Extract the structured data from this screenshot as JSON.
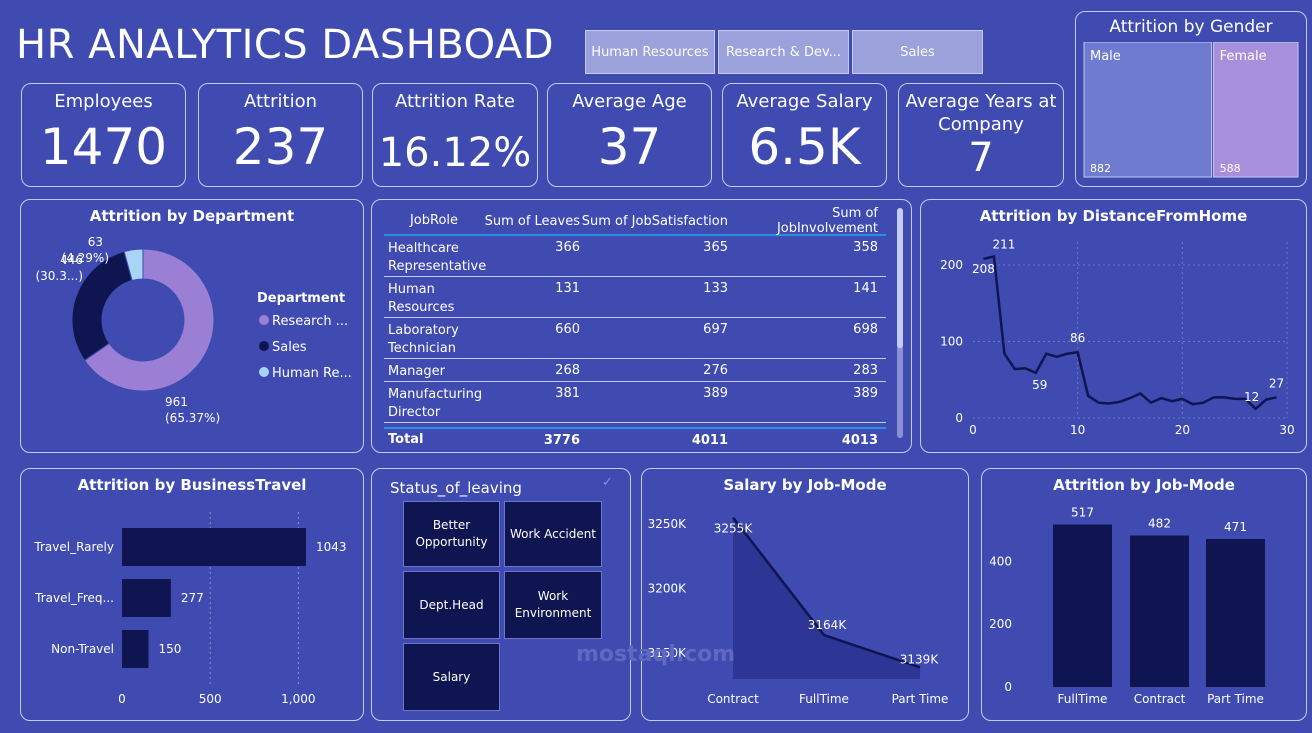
{
  "title": "HR ANALYTICS DASHBOAD",
  "slicer": [
    "Human Resources",
    "Research & Dev...",
    "Sales"
  ],
  "kpis": {
    "employees": {
      "label": "Employees",
      "value": "1470"
    },
    "attrition": {
      "label": "Attrition",
      "value": "237"
    },
    "attrition_rate": {
      "label": "Attrition Rate",
      "value": "16.12%"
    },
    "average_age": {
      "label": "Average Age",
      "value": "37"
    },
    "average_salary": {
      "label": "Average Salary",
      "value": "6.5K"
    },
    "average_years": {
      "label": "Average Years at Company",
      "value": "7"
    }
  },
  "table": {
    "headers": [
      "JobRole",
      "Sum of Leaves",
      "Sum of JobSatisfaction",
      "Sum of JobInvolvement"
    ],
    "rows": [
      [
        "Healthcare Representative",
        "366",
        "365",
        "358"
      ],
      [
        "Human Resources",
        "131",
        "133",
        "141"
      ],
      [
        "Laboratory Technician",
        "660",
        "697",
        "698"
      ],
      [
        "Manager",
        "268",
        "276",
        "283"
      ],
      [
        "Manufacturing Director",
        "381",
        "389",
        "389"
      ]
    ],
    "total": [
      "Total",
      "3776",
      "4011",
      "4013"
    ]
  },
  "status_of_leaving": {
    "title": "Status_of_leaving",
    "tiles": [
      "Better Opportunity",
      "Work Accident",
      "Dept.Head",
      "Work Environment",
      "Salary"
    ]
  },
  "watermark": "mostaql.com",
  "colors": {
    "bg": "#3f4bb1",
    "navy": "#0f1550",
    "lavender": "#9b7fd4",
    "lightblue": "#a8d4f5"
  },
  "chart_data": [
    {
      "id": "gender",
      "type": "treemap",
      "title": "Attrition by Gender",
      "categories": [
        "Male",
        "Female"
      ],
      "values": [
        882,
        588
      ]
    },
    {
      "id": "department",
      "type": "pie",
      "title": "Attrition by Department",
      "legend_title": "Department",
      "categories": [
        "Research ...",
        "Sales",
        "Human Re..."
      ],
      "values": [
        961,
        446,
        63
      ],
      "labels": [
        "961",
        "446",
        "63"
      ],
      "percent_labels": [
        "(65.37%)",
        "(30.3...)",
        "(4.29%)"
      ],
      "colors": [
        "#9b7fd4",
        "#0f1550",
        "#a8d4f5"
      ],
      "legend": "right"
    },
    {
      "id": "distance",
      "type": "line",
      "title": "Attrition by DistanceFromHome",
      "x": [
        1,
        2,
        3,
        4,
        5,
        6,
        7,
        8,
        9,
        10,
        11,
        12,
        13,
        14,
        15,
        16,
        17,
        18,
        19,
        20,
        21,
        22,
        23,
        24,
        25,
        26,
        27,
        28,
        29
      ],
      "y": [
        208,
        211,
        84,
        64,
        65,
        59,
        84,
        80,
        84,
        86,
        29,
        20,
        19,
        21,
        26,
        32,
        20,
        26,
        22,
        25,
        18,
        20,
        27,
        27,
        25,
        25,
        12,
        24,
        27
      ],
      "point_labels": {
        "1": "208",
        "2": "211",
        "6": "59",
        "10": "86",
        "27": "12",
        "29": "27"
      },
      "xticks": [
        "0",
        "10",
        "20",
        "30"
      ],
      "yticks": [
        "0",
        "100",
        "200"
      ],
      "xlim": [
        0,
        30
      ],
      "ylim": [
        0,
        230
      ],
      "grid": true
    },
    {
      "id": "business_travel",
      "type": "bar",
      "orientation": "horizontal",
      "title": "Attrition by BusinessTravel",
      "categories": [
        "Travel_Rarely",
        "Travel_Freq...",
        "Non-Travel"
      ],
      "values": [
        1043,
        277,
        150
      ],
      "xticks": [
        "0",
        "500",
        "1,000"
      ],
      "xlim": [
        0,
        1100
      ],
      "grid": true
    },
    {
      "id": "salary_jobmode",
      "type": "area",
      "title": "Salary by Job-Mode",
      "categories": [
        "Contract",
        "FullTime",
        "Part Time"
      ],
      "values": [
        3255,
        3164,
        3139
      ],
      "labels": [
        "3255K",
        "3164K",
        "3139K"
      ],
      "yticks": [
        "3150K",
        "3200K",
        "3250K"
      ],
      "ylim": [
        3130,
        3260
      ]
    },
    {
      "id": "attrition_jobmode",
      "type": "bar",
      "title": "Attrition by Job-Mode",
      "categories": [
        "FullTime",
        "Contract",
        "Part Time"
      ],
      "values": [
        517,
        482,
        471
      ],
      "yticks": [
        "0",
        "200",
        "400"
      ],
      "ylim": [
        0,
        560
      ]
    }
  ]
}
